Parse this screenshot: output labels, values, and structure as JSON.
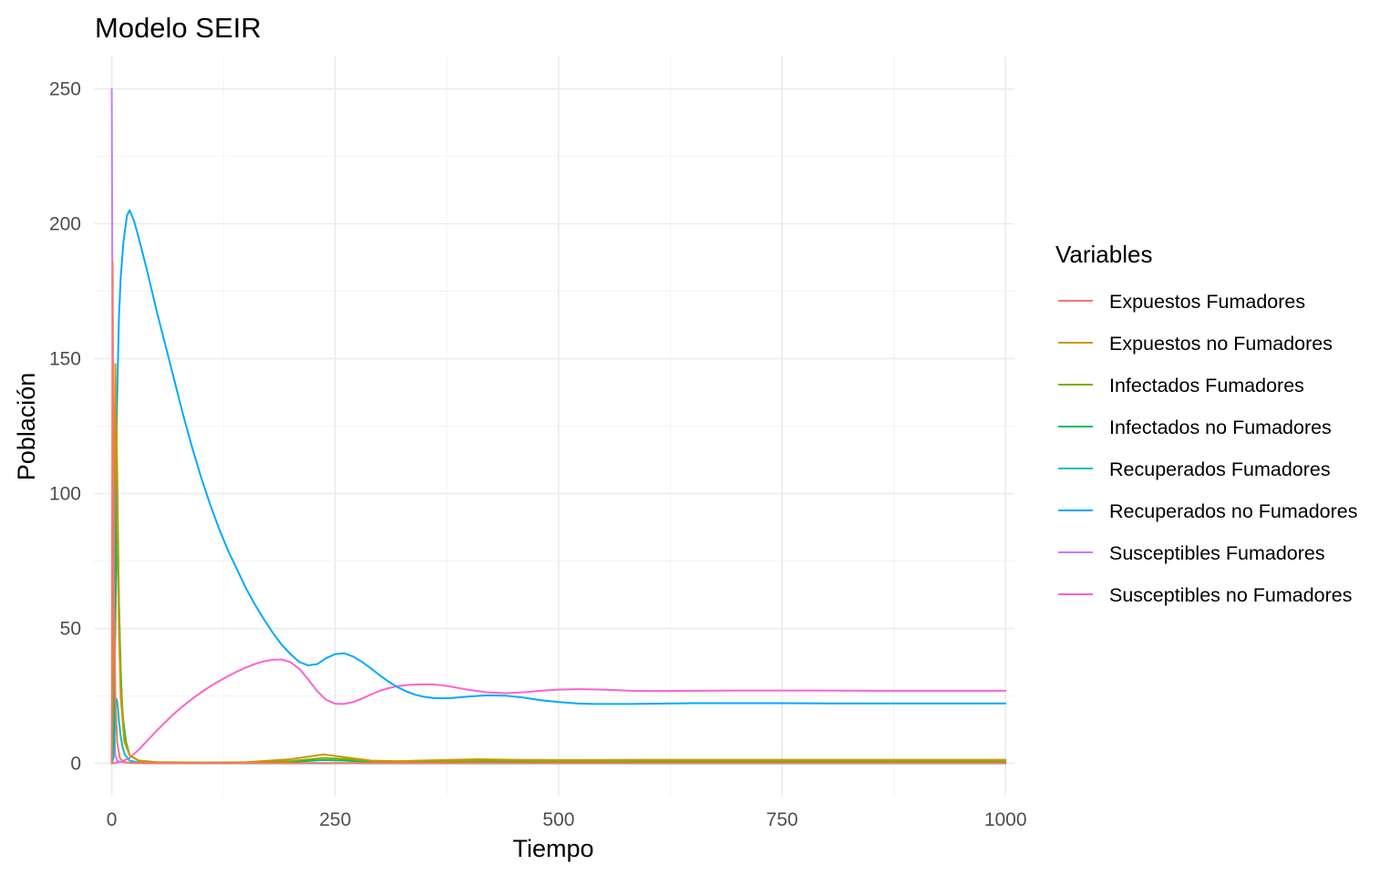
{
  "chart_data": {
    "type": "line",
    "title": "Modelo SEIR",
    "xlabel": "Tiempo",
    "ylabel": "Población",
    "xlim": [
      -20,
      1010
    ],
    "ylim": [
      -12,
      262
    ],
    "x_ticks": [
      0,
      250,
      500,
      750,
      1000
    ],
    "x_tick_labels": [
      "0",
      "250",
      "500",
      "750",
      "1000"
    ],
    "y_ticks": [
      0,
      50,
      100,
      150,
      200,
      250
    ],
    "y_tick_labels": [
      "0",
      "50",
      "100",
      "150",
      "200",
      "250"
    ],
    "grid": true,
    "legend": {
      "title": "Variables",
      "position": "right"
    },
    "series": [
      {
        "name": "Expuestos Fumadores",
        "color": "#F8766D",
        "x": [
          0,
          1,
          2,
          4,
          6,
          9,
          13,
          20,
          40,
          100,
          200,
          1000
        ],
        "y": [
          0,
          186,
          80,
          25,
          8,
          2,
          0.5,
          0.2,
          0.1,
          0.1,
          0.1,
          0.1
        ]
      },
      {
        "name": "Expuestos no Fumadores",
        "color": "#CD9600",
        "x": [
          0,
          2,
          4,
          6,
          8,
          10,
          14,
          20,
          30,
          50,
          100,
          150,
          200,
          237,
          260,
          290,
          320,
          370,
          410,
          450,
          500,
          600,
          700,
          800,
          900,
          1000
        ],
        "y": [
          0,
          60,
          148,
          100,
          50,
          25,
          8,
          3,
          1,
          0.4,
          0.3,
          0.4,
          1.5,
          3.3,
          2.3,
          1,
          0.8,
          1.2,
          1.5,
          1.3,
          1.2,
          1.3,
          1.3,
          1.3,
          1.3,
          1.3
        ]
      },
      {
        "name": "Infectados Fumadores",
        "color": "#7CAE00",
        "x": [
          0,
          2,
          3,
          4,
          6,
          8,
          10,
          14,
          20,
          30,
          50,
          100,
          150,
          200,
          237,
          260,
          290,
          330,
          380,
          420,
          500,
          600,
          800,
          1000
        ],
        "y": [
          0,
          40,
          90,
          140,
          110,
          60,
          30,
          10,
          3,
          1,
          0.4,
          0.3,
          0.3,
          0.8,
          2,
          1.6,
          0.8,
          0.5,
          0.7,
          0.9,
          0.8,
          0.8,
          0.8,
          0.8
        ]
      },
      {
        "name": "Infectados no Fumadores",
        "color": "#00BE67",
        "x": [
          0,
          2,
          4,
          6,
          8,
          10,
          12,
          16,
          20,
          30,
          50,
          100,
          150,
          200,
          237,
          260,
          290,
          330,
          400,
          500,
          600,
          800,
          1000
        ],
        "y": [
          0,
          10,
          50,
          95,
          60,
          35,
          18,
          8,
          3,
          1,
          0.3,
          0.2,
          0.2,
          0.5,
          1.2,
          1,
          0.5,
          0.3,
          0.4,
          0.4,
          0.4,
          0.4,
          0.4
        ]
      },
      {
        "name": "Recuperados Fumadores",
        "color": "#00BFC4",
        "x": [
          0,
          2,
          3,
          4,
          5,
          6,
          7,
          8,
          10,
          12,
          15,
          20,
          30,
          50,
          100,
          200,
          400,
          700,
          1000
        ],
        "y": [
          0,
          2,
          8,
          20,
          24,
          23,
          20,
          16,
          10,
          6,
          3,
          1,
          0.3,
          0.1,
          0.05,
          0.05,
          0.05,
          0.05,
          0.05
        ]
      },
      {
        "name": "Recuperados no Fumadores",
        "color": "#00A9FF",
        "x": [
          0,
          2,
          3,
          4,
          5,
          6,
          8,
          10,
          13,
          17,
          20,
          25,
          30,
          40,
          50,
          60,
          70,
          80,
          90,
          100,
          110,
          120,
          130,
          140,
          150,
          160,
          170,
          180,
          190,
          200,
          210,
          220,
          230,
          240,
          250,
          260,
          270,
          280,
          290,
          300,
          310,
          320,
          330,
          340,
          350,
          360,
          370,
          380,
          390,
          400,
          420,
          440,
          460,
          480,
          500,
          520,
          540,
          560,
          580,
          600,
          650,
          700,
          750,
          800,
          850,
          900,
          950,
          1000
        ],
        "y": [
          0,
          5,
          25,
          70,
          110,
          135,
          165,
          180,
          193,
          203,
          205,
          201,
          195,
          182,
          168,
          155,
          142,
          129,
          117,
          106,
          96,
          87,
          79,
          72,
          65,
          59,
          53.5,
          48.5,
          44,
          40.5,
          37.5,
          36.3,
          36.8,
          39,
          40.5,
          40.8,
          39.6,
          37.6,
          35.2,
          32.6,
          30.2,
          28.2,
          26.6,
          25.4,
          24.6,
          24.2,
          24.1,
          24.2,
          24.5,
          24.8,
          25.2,
          25.1,
          24.4,
          23.4,
          22.7,
          22.2,
          22,
          22,
          22,
          22.1,
          22.3,
          22.3,
          22.3,
          22.2,
          22.2,
          22.2,
          22.2,
          22.2
        ]
      },
      {
        "name": "Susceptibles Fumadores",
        "color": "#C77CFF",
        "x": [
          0,
          0.5,
          1,
          1.5,
          2,
          3,
          4,
          6,
          10,
          20,
          50,
          100,
          500,
          1000
        ],
        "y": [
          250,
          200,
          130,
          70,
          35,
          10,
          3,
          1,
          0.5,
          0.1,
          0.05,
          0.05,
          0.05,
          0.05
        ]
      },
      {
        "name": "Susceptibles no Fumadores",
        "color": "#FF61CC",
        "x": [
          0,
          10,
          20,
          30,
          40,
          50,
          60,
          70,
          80,
          90,
          100,
          110,
          120,
          130,
          140,
          150,
          160,
          170,
          180,
          190,
          200,
          210,
          220,
          230,
          240,
          250,
          260,
          270,
          280,
          290,
          300,
          310,
          320,
          330,
          340,
          350,
          360,
          370,
          380,
          390,
          400,
          420,
          440,
          460,
          480,
          500,
          520,
          540,
          560,
          580,
          600,
          650,
          700,
          750,
          800,
          850,
          900,
          950,
          1000
        ],
        "y": [
          0,
          0.5,
          2,
          5,
          8.5,
          12,
          15.3,
          18.5,
          21.3,
          23.9,
          26.3,
          28.5,
          30.5,
          32.3,
          34,
          35.5,
          36.8,
          37.8,
          38.4,
          38.5,
          37.5,
          35,
          31,
          26.7,
          23.5,
          22.1,
          22,
          22.7,
          24,
          25.5,
          26.9,
          27.9,
          28.6,
          29,
          29.2,
          29.3,
          29.2,
          28.9,
          28.4,
          27.8,
          27.2,
          26.3,
          26,
          26.3,
          26.9,
          27.3,
          27.5,
          27.4,
          27.2,
          26.9,
          26.8,
          26.9,
          27,
          27,
          27,
          26.9,
          26.9,
          26.9,
          26.9
        ]
      }
    ]
  }
}
